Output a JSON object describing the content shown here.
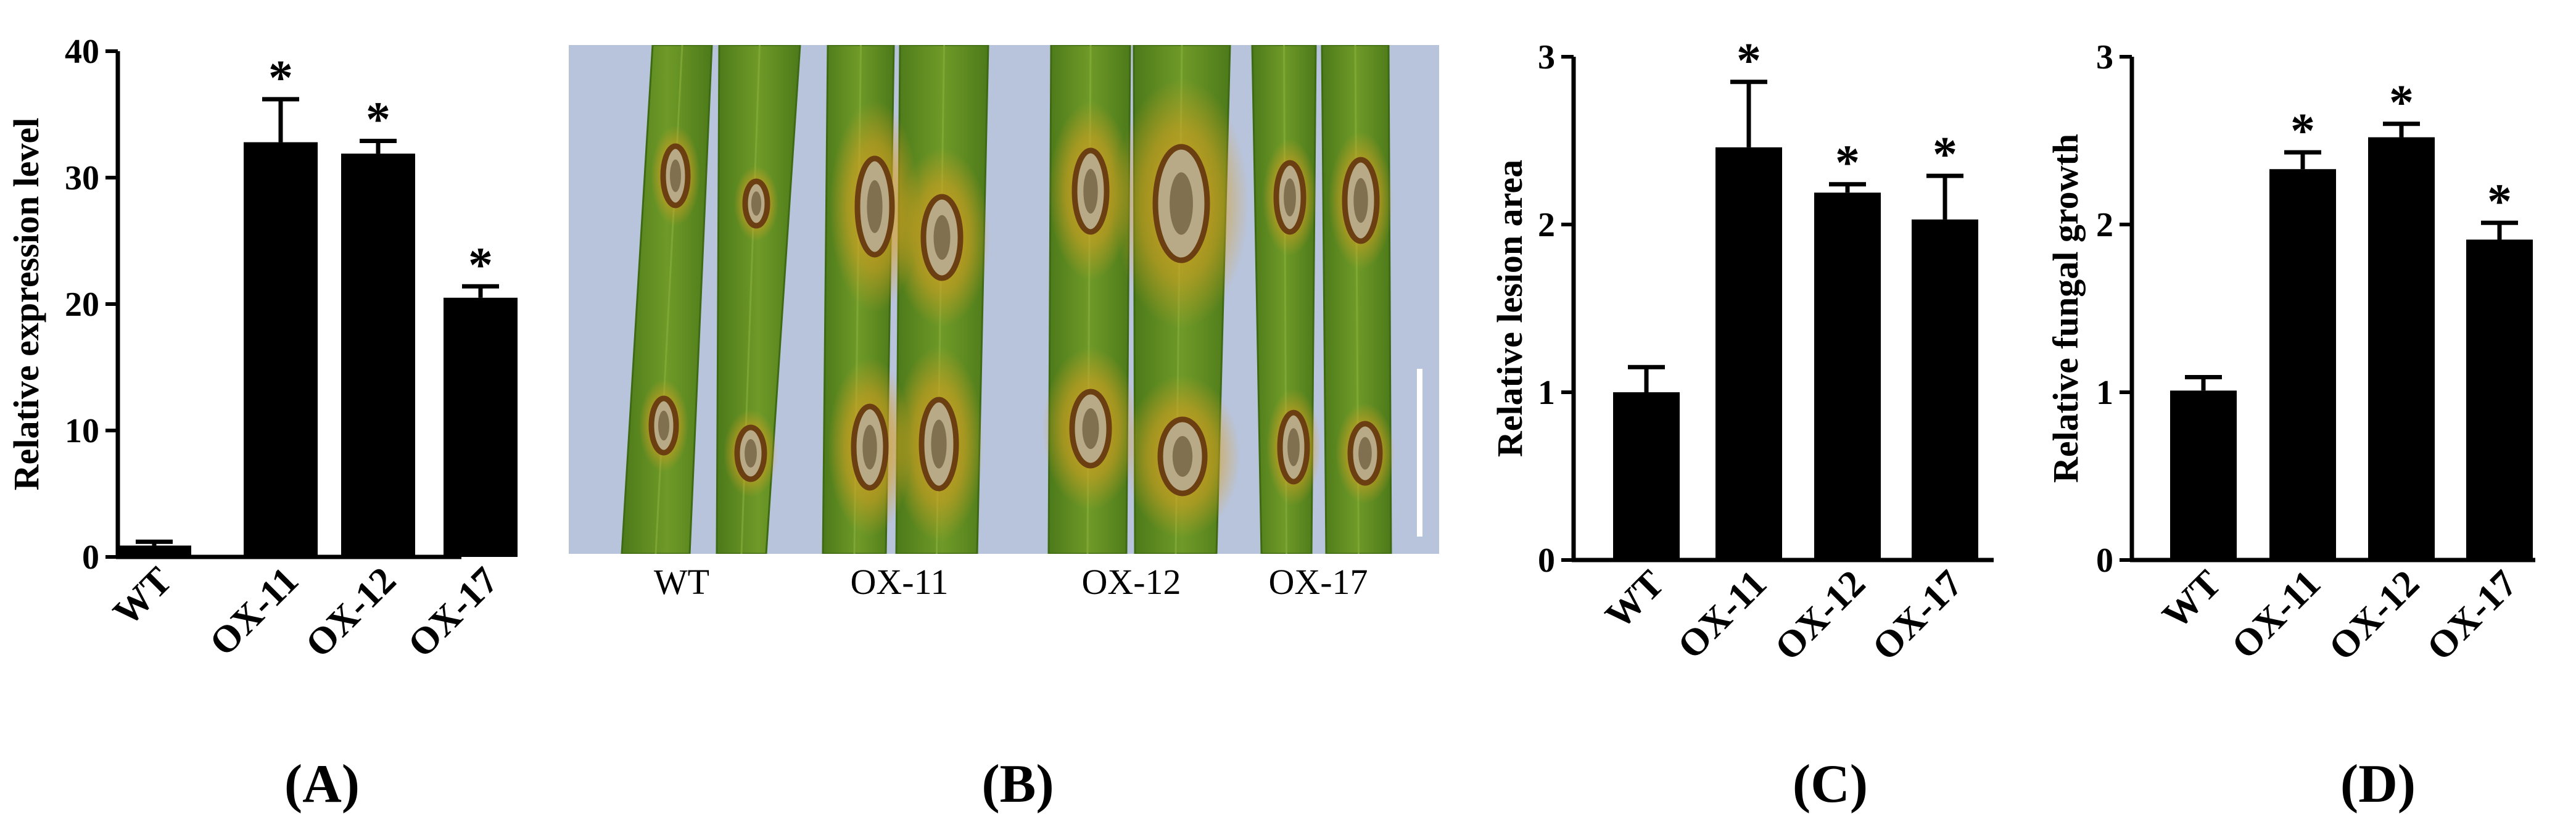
{
  "chart_data": [
    {
      "type": "bar",
      "panel": "(A)",
      "ylabel": "Relative expression level",
      "categories": [
        "WT",
        "OX-11",
        "OX-12",
        "OX-17"
      ],
      "values": [
        0.9,
        32.8,
        31.9,
        20.5
      ],
      "errors": [
        0.3,
        3.4,
        1.0,
        0.9
      ],
      "significant": [
        false,
        true,
        true,
        true
      ],
      "ylim": [
        0,
        40
      ],
      "yticks": [
        0,
        10,
        20,
        30,
        40
      ]
    },
    {
      "type": "image",
      "panel": "(B)",
      "labels": [
        "WT",
        "OX-11",
        "OX-12",
        "OX-17"
      ]
    },
    {
      "type": "bar",
      "panel": "(C)",
      "ylabel": "Relative lesion area",
      "categories": [
        "WT",
        "OX-11",
        "OX-12",
        "OX-17"
      ],
      "values": [
        1.0,
        2.46,
        2.19,
        2.03
      ],
      "errors": [
        0.15,
        0.39,
        0.05,
        0.26
      ],
      "significant": [
        false,
        true,
        true,
        true
      ],
      "ylim": [
        0,
        3
      ],
      "yticks": [
        0,
        1,
        2,
        3
      ]
    },
    {
      "type": "bar",
      "panel": "(D)",
      "ylabel": "Relative fungal growth",
      "categories": [
        "WT",
        "OX-11",
        "OX-12",
        "OX-17"
      ],
      "values": [
        1.01,
        2.33,
        2.52,
        1.91
      ],
      "errors": [
        0.08,
        0.1,
        0.08,
        0.1
      ],
      "significant": [
        false,
        true,
        true,
        true
      ],
      "ylim": [
        0,
        3
      ],
      "yticks": [
        0,
        1,
        2,
        3
      ]
    }
  ],
  "significance_marker": "*",
  "colors": {
    "bar": "#000000",
    "photo_background": "#b8c4dc",
    "leaf": "#6f9a28",
    "leaf_dark": "#4d7a1a",
    "lesion_halo": "#d9a021",
    "lesion_edge": "#6b3f12",
    "lesion_center": "#b8aa86"
  }
}
